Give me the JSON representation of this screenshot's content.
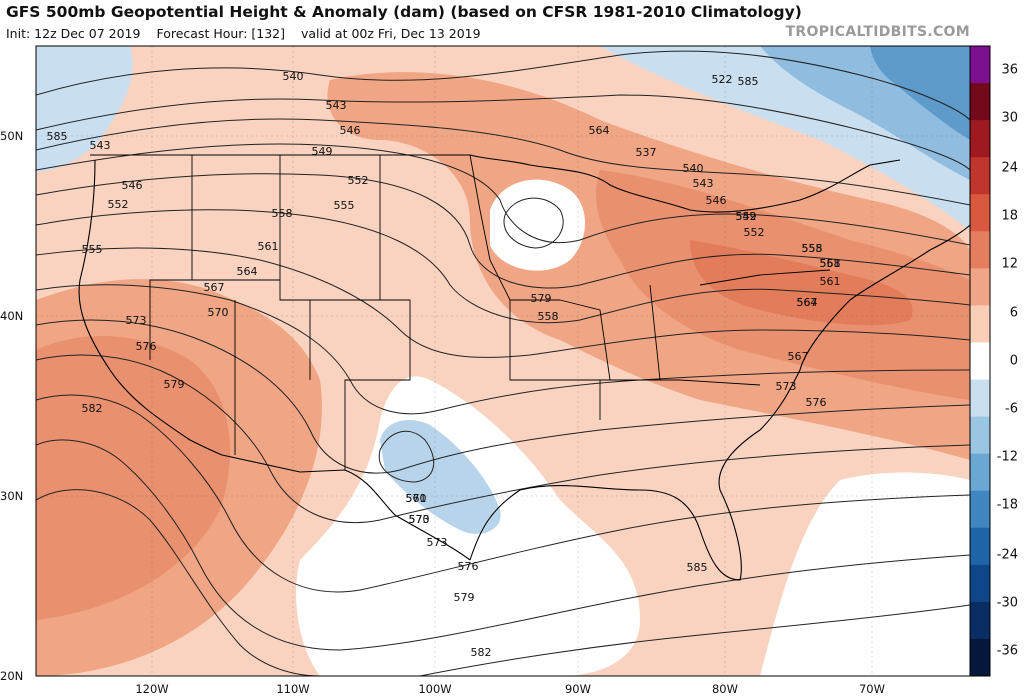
{
  "header": {
    "title": "GFS 500mb Geopotential Height & Anomaly (dam) (based on CFSR 1981-2010 Climatology)",
    "init": "Init: 12z Dec 07 2019",
    "forecast_hour": "Forecast Hour: [132]",
    "valid": "valid at 00z Fri, Dec 13 2019"
  },
  "watermark": "TROPICALTIDBITS.COM",
  "colorbar": {
    "labels": [
      "36",
      "30",
      "24",
      "18",
      "12",
      "6",
      "0",
      "-6",
      "-12",
      "-18",
      "-24",
      "-30",
      "-36"
    ],
    "colors": [
      "#7b1190",
      "#730a1b",
      "#9e1a20",
      "#c0362c",
      "#d9593f",
      "#e57e5f",
      "#f0a586",
      "#f9cfb8",
      "#ffffff",
      "#c9dff0",
      "#9bc6e3",
      "#6aa7d2",
      "#3f85c0",
      "#2064a8",
      "#0f4788",
      "#0a2e63",
      "#05183b"
    ]
  },
  "axes": {
    "lat_labels": [
      "50N",
      "40N",
      "30N",
      "20N"
    ],
    "lon_labels": [
      "120W",
      "110W",
      "100W",
      "90W",
      "80W",
      "70W"
    ]
  },
  "contours": [
    "522",
    "537",
    "540",
    "543",
    "546",
    "549",
    "552",
    "555",
    "558",
    "561",
    "564",
    "567",
    "570",
    "573",
    "576",
    "579",
    "582",
    "585"
  ],
  "contour_labels": [
    {
      "text": "540"
    },
    {
      "text": "543"
    },
    {
      "text": "546"
    },
    {
      "text": "549"
    },
    {
      "text": "552"
    },
    {
      "text": "555"
    },
    {
      "text": "558"
    },
    {
      "text": "561"
    },
    {
      "text": "564"
    },
    {
      "text": "567"
    },
    {
      "text": "570"
    },
    {
      "text": "573"
    },
    {
      "text": "576"
    },
    {
      "text": "579"
    },
    {
      "text": "582"
    },
    {
      "text": "585"
    },
    {
      "text": "543"
    },
    {
      "text": "546"
    },
    {
      "text": "552"
    },
    {
      "text": "555"
    },
    {
      "text": "564"
    },
    {
      "text": "537"
    },
    {
      "text": "540"
    },
    {
      "text": "543"
    },
    {
      "text": "546"
    },
    {
      "text": "549"
    },
    {
      "text": "552"
    },
    {
      "text": "555"
    },
    {
      "text": "558"
    },
    {
      "text": "561"
    },
    {
      "text": "564"
    },
    {
      "text": "567"
    },
    {
      "text": "573"
    },
    {
      "text": "576"
    },
    {
      "text": "579"
    },
    {
      "text": "558"
    },
    {
      "text": "561"
    },
    {
      "text": "570"
    },
    {
      "text": "573"
    },
    {
      "text": "576"
    },
    {
      "text": "579"
    },
    {
      "text": "582"
    },
    {
      "text": "585"
    },
    {
      "text": "585"
    },
    {
      "text": "522"
    },
    {
      "text": "552"
    },
    {
      "text": "558"
    },
    {
      "text": "561"
    },
    {
      "text": "567"
    },
    {
      "text": "570"
    },
    {
      "text": "573"
    }
  ]
}
